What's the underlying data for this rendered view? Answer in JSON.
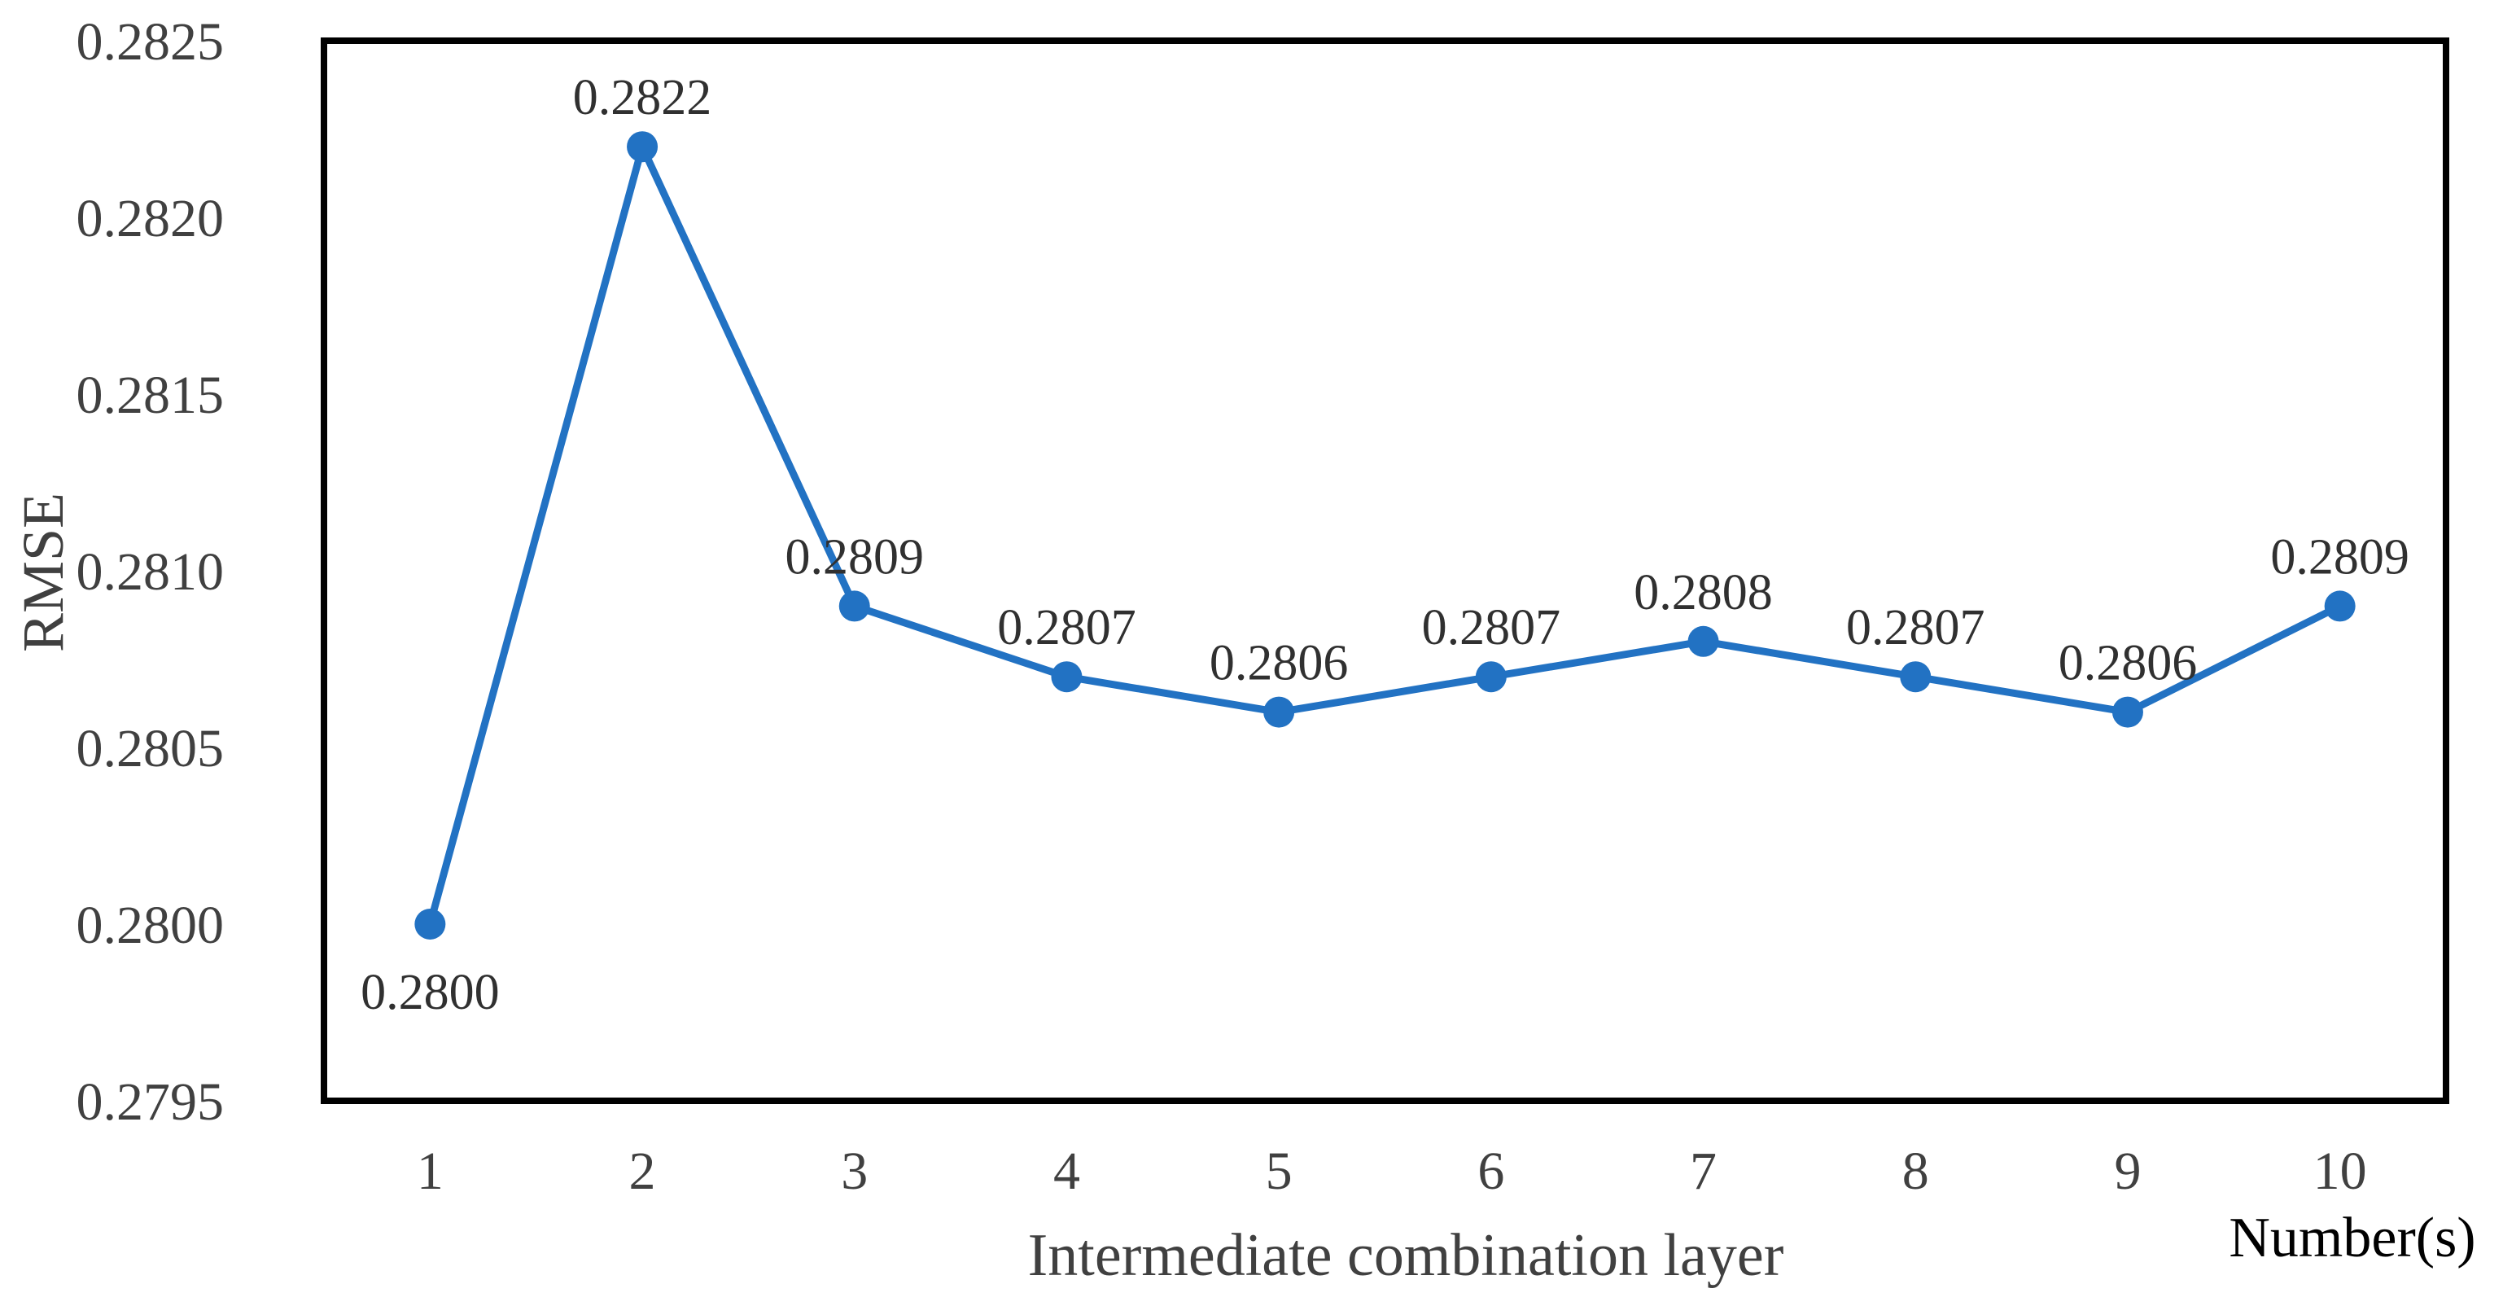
{
  "chart_data": {
    "type": "line",
    "title": "",
    "xlabel": "Intermediate combination layer",
    "xlabel_unit": "Number(s)",
    "ylabel": "RMSE",
    "categories": [
      1,
      2,
      3,
      4,
      5,
      6,
      7,
      8,
      9,
      10
    ],
    "series": [
      {
        "name": "RMSE",
        "values": [
          0.28,
          0.2822,
          0.2809,
          0.2807,
          0.2806,
          0.2807,
          0.2808,
          0.2807,
          0.2806,
          0.2809
        ]
      }
    ],
    "point_labels": [
      "0.2800",
      "0.2822",
      "0.2809",
      "0.2807",
      "0.2806",
      "0.2807",
      "0.2808",
      "0.2807",
      "0.2806",
      "0.2809"
    ],
    "point_label_positions": [
      "below",
      "above",
      "above",
      "above",
      "above",
      "above",
      "above",
      "above",
      "above",
      "above"
    ],
    "ylim": [
      0.2795,
      0.2825
    ],
    "y_ticks": [
      "0.2825",
      "0.2820",
      "0.2815",
      "0.2810",
      "0.2805",
      "0.2800",
      "0.2795"
    ],
    "x_ticks": [
      "1",
      "2",
      "3",
      "4",
      "5",
      "6",
      "7",
      "8",
      "9",
      "10"
    ],
    "grid": false,
    "legend_position": "none",
    "line_color": "#2272C3",
    "marker": "circle",
    "plot_border_color": "#000000",
    "tick_label_color": "#404040",
    "data_label_color": "#303030",
    "unit_label_color": "#000000"
  }
}
